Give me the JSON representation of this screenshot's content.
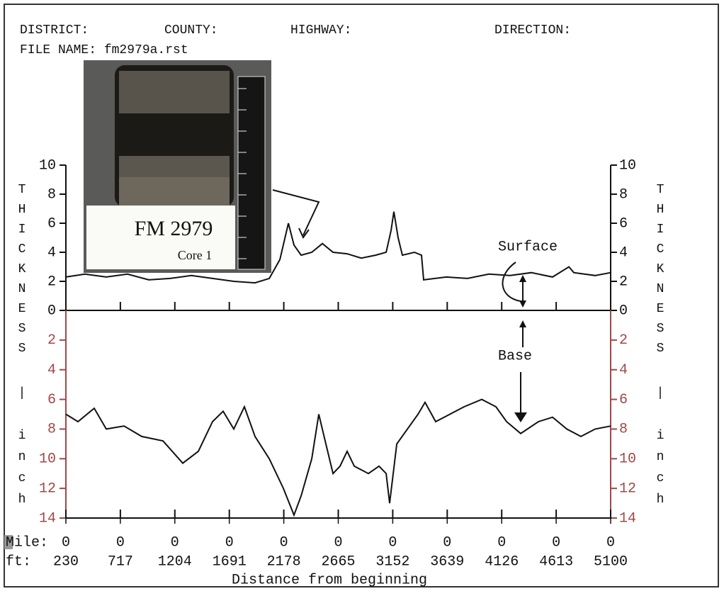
{
  "header": {
    "district": "DISTRICT:",
    "county": "COUNTY:",
    "highway": "HIGHWAY:",
    "direction": "DIRECTION:",
    "file_name": "FILE NAME: fm2979a.rst"
  },
  "inset": {
    "label": "FM 2979",
    "sublabel": "Core 1"
  },
  "chart_data": [
    {
      "type": "line",
      "ylabel": "THICKNESS",
      "xlim": [
        230,
        5100
      ],
      "ylim": [
        0,
        10
      ],
      "yticks": [
        0,
        2,
        4,
        6,
        8,
        10
      ],
      "axis_color": "#111111",
      "series": [
        {
          "name": "Surface",
          "color": "#111111",
          "x": [
            230,
            401,
            591,
            781,
            971,
            1161,
            1351,
            1541,
            1731,
            1921,
            2048,
            2143,
            2219,
            2269,
            2333,
            2428,
            2523,
            2618,
            2744,
            2871,
            2998,
            3093,
            3137,
            3162,
            3200,
            3238,
            3346,
            3409,
            3428,
            3631,
            3821,
            4011,
            4201,
            4391,
            4581,
            4727,
            4771,
            4961,
            5100
          ],
          "values": [
            2.3,
            2.5,
            2.3,
            2.5,
            2.1,
            2.2,
            2.4,
            2.2,
            2.0,
            1.9,
            2.2,
            3.5,
            6.0,
            4.5,
            3.8,
            4.0,
            4.6,
            4.0,
            3.9,
            3.6,
            3.8,
            4.0,
            5.5,
            6.8,
            5.0,
            3.8,
            4.0,
            3.8,
            2.1,
            2.3,
            2.2,
            2.5,
            2.4,
            2.6,
            2.3,
            3.0,
            2.6,
            2.4,
            2.6
          ]
        }
      ]
    },
    {
      "type": "line",
      "ylabel": "| inch",
      "inverted": true,
      "xlim": [
        230,
        5100
      ],
      "ylim": [
        0,
        14
      ],
      "yticks": [
        2,
        4,
        6,
        8,
        10,
        12,
        14
      ],
      "axis_color": "#a04848",
      "xticks": [
        230,
        717,
        1204,
        1691,
        2178,
        2665,
        3152,
        3639,
        4126,
        4613,
        5100
      ],
      "mile_ticks": [
        {
          "value": 230,
          "label": "0"
        },
        {
          "value": 717,
          "label": "0"
        },
        {
          "value": 1204,
          "label": "0"
        },
        {
          "value": 1691,
          "label": "0"
        },
        {
          "value": 2178,
          "label": "0"
        },
        {
          "value": 2665,
          "label": "0"
        },
        {
          "value": 3152,
          "label": "0"
        },
        {
          "value": 3639,
          "label": "0"
        },
        {
          "value": 4126,
          "label": "0"
        },
        {
          "value": 4613,
          "label": "0"
        },
        {
          "value": 5100,
          "label": "0"
        }
      ],
      "mile_label": "Mile:",
      "ft_label": "ft:",
      "xlabel": "Distance from beginning",
      "series": [
        {
          "name": "Base",
          "color": "#111111",
          "x": [
            230,
            338,
            483,
            591,
            750,
            908,
            1098,
            1275,
            1414,
            1541,
            1636,
            1731,
            1826,
            1921,
            2048,
            2174,
            2269,
            2333,
            2428,
            2491,
            2554,
            2618,
            2681,
            2744,
            2808,
            2934,
            3029,
            3093,
            3124,
            3188,
            3283,
            3378,
            3441,
            3536,
            3663,
            3790,
            3948,
            4075,
            4170,
            4296,
            4454,
            4581,
            4708,
            4834,
            4961,
            5100
          ],
          "values": [
            7.0,
            7.5,
            6.6,
            8.0,
            7.8,
            8.5,
            8.8,
            10.3,
            9.5,
            7.5,
            6.8,
            8.0,
            6.5,
            8.5,
            10.0,
            12.0,
            13.8,
            12.5,
            10.0,
            7.0,
            9.0,
            11.0,
            10.5,
            9.5,
            10.5,
            11.0,
            10.5,
            11.0,
            13.0,
            9.0,
            8.0,
            7.0,
            6.2,
            7.5,
            7.0,
            6.5,
            6.0,
            6.5,
            7.5,
            8.3,
            7.5,
            7.2,
            8.0,
            8.5,
            8.0,
            7.8
          ]
        }
      ]
    }
  ]
}
